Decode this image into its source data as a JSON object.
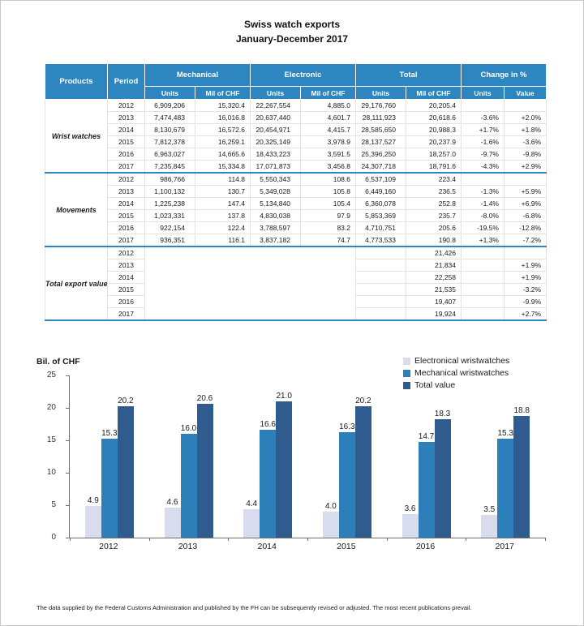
{
  "title": {
    "line1": "Swiss watch exports",
    "line2": "January-December 2017"
  },
  "colors": {
    "header_blue": "#2d86c0",
    "separator_blue": "#2e86c1"
  },
  "table": {
    "header": {
      "products": "Products",
      "period": "Period",
      "groups": [
        {
          "label": "Mechanical",
          "sub": [
            "Units",
            "Mil of CHF"
          ]
        },
        {
          "label": "Electronic",
          "sub": [
            "Units",
            "Mil of CHF"
          ]
        },
        {
          "label": "Total",
          "sub": [
            "Units",
            "Mil of CHF"
          ]
        },
        {
          "label": "Change in %",
          "sub": [
            "Units",
            "Value"
          ]
        }
      ]
    },
    "sections": [
      {
        "product": "Wrist watches",
        "rows": [
          [
            "2012",
            "6,909,206",
            "15,320.4",
            "22,267,554",
            "4,885.0",
            "29,176,760",
            "20,205.4",
            "",
            ""
          ],
          [
            "2013",
            "7,474,483",
            "16,016.8",
            "20,637,440",
            "4,601.7",
            "28,111,923",
            "20,618.6",
            "-3.6%",
            "+2.0%"
          ],
          [
            "2014",
            "8,130,679",
            "16,572.6",
            "20,454,971",
            "4,415.7",
            "28,585,650",
            "20,988.3",
            "+1.7%",
            "+1.8%"
          ],
          [
            "2015",
            "7,812,378",
            "16,259.1",
            "20,325,149",
            "3,978.9",
            "28,137,527",
            "20,237.9",
            "-1.6%",
            "-3.6%"
          ],
          [
            "2016",
            "6,963,027",
            "14,665.6",
            "18,433,223",
            "3,591.5",
            "25,396,250",
            "18,257.0",
            "-9.7%",
            "-9.8%"
          ],
          [
            "2017",
            "7,235,845",
            "15,334.8",
            "17,071,873",
            "3,456.8",
            "24,307,718",
            "18,791.6",
            "-4.3%",
            "+2.9%"
          ]
        ]
      },
      {
        "product": "Movements",
        "rows": [
          [
            "2012",
            "986,766",
            "114.8",
            "5,550,343",
            "108.6",
            "6,537,109",
            "223.4",
            "",
            ""
          ],
          [
            "2013",
            "1,100,132",
            "130.7",
            "5,349,028",
            "105.8",
            "6,449,160",
            "236.5",
            "-1.3%",
            "+5.9%"
          ],
          [
            "2014",
            "1,225,238",
            "147.4",
            "5,134,840",
            "105.4",
            "6,360,078",
            "252.8",
            "-1.4%",
            "+6.9%"
          ],
          [
            "2015",
            "1,023,331",
            "137.8",
            "4,830,038",
            "97.9",
            "5,853,369",
            "235.7",
            "-8.0%",
            "-6.8%"
          ],
          [
            "2016",
            "922,154",
            "122.4",
            "3,788,597",
            "83.2",
            "4,710,751",
            "205.6",
            "-19.5%",
            "-12.8%"
          ],
          [
            "2017",
            "936,351",
            "116.1",
            "3,837,182",
            "74.7",
            "4,773,533",
            "190.8",
            "+1.3%",
            "-7.2%"
          ]
        ]
      },
      {
        "product": "Total export value",
        "rows": [
          [
            "2012",
            "",
            "",
            "",
            "",
            "",
            "21,426",
            "",
            ""
          ],
          [
            "2013",
            "",
            "",
            "",
            "",
            "",
            "21,834",
            "",
            "+1.9%"
          ],
          [
            "2014",
            "",
            "",
            "",
            "",
            "",
            "22,258",
            "",
            "+1.9%"
          ],
          [
            "2015",
            "",
            "",
            "",
            "",
            "",
            "21,535",
            "",
            "-3.2%"
          ],
          [
            "2016",
            "",
            "",
            "",
            "",
            "",
            "19,407",
            "",
            "-9.9%"
          ],
          [
            "2017",
            "",
            "",
            "",
            "",
            "",
            "19,924",
            "",
            "+2.7%"
          ]
        ]
      }
    ]
  },
  "chart_data": {
    "type": "bar",
    "title": "",
    "categories": [
      "2012",
      "2013",
      "2014",
      "2015",
      "2016",
      "2017"
    ],
    "series": [
      {
        "name": "Electronical wristwatches",
        "color": "#d8dcec",
        "values": [
          4.9,
          4.6,
          4.4,
          4.0,
          3.6,
          3.5
        ]
      },
      {
        "name": "Mechanical wristwatches",
        "color": "#2d7fba",
        "values": [
          15.3,
          16.0,
          16.6,
          16.3,
          14.7,
          15.3
        ]
      },
      {
        "name": "Total value",
        "color": "#2f5b8f",
        "values": [
          20.2,
          20.6,
          21.0,
          20.2,
          18.3,
          18.8
        ]
      }
    ],
    "xlabel": "",
    "ylabel": "Bil. of CHF",
    "ylim": [
      0,
      25
    ],
    "yticks": [
      0,
      5,
      10,
      15,
      20,
      25
    ],
    "grid": false,
    "legend_position": "top-right",
    "data_labels": true
  },
  "footer": {
    "note": "The data supplied by the Federal Customs Administration and published by the FH can be subsequently revised or adjusted. The most recent publications prevail."
  }
}
